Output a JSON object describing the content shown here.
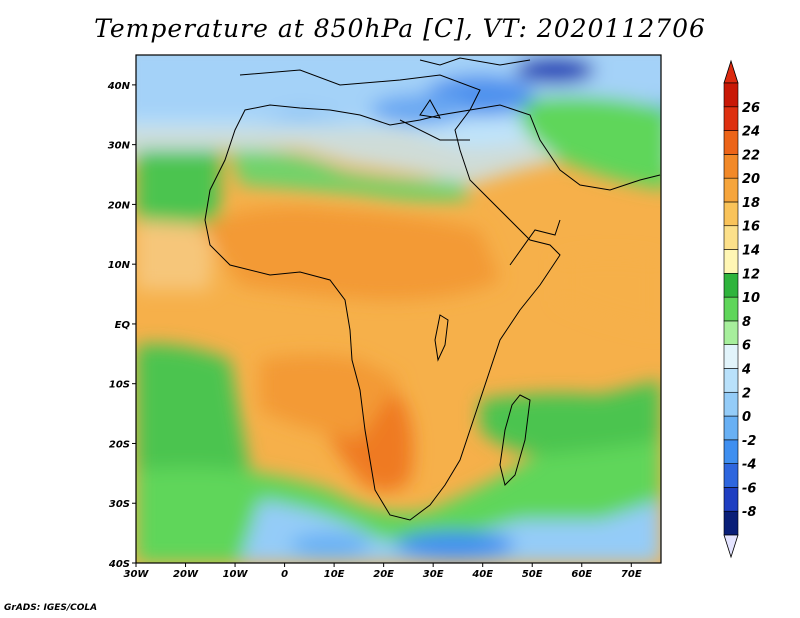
{
  "title": "Temperature at 850hPa [C], VT: 2020112706",
  "credit": "GrADS: IGES/COLA",
  "map": {
    "lon_range": [
      -30,
      76
    ],
    "lat_range": [
      -40,
      45
    ],
    "lon_ticks": [
      {
        "value": -30,
        "label": "30W"
      },
      {
        "value": -20,
        "label": "20W"
      },
      {
        "value": -10,
        "label": "10W"
      },
      {
        "value": 0,
        "label": "0"
      },
      {
        "value": 10,
        "label": "10E"
      },
      {
        "value": 20,
        "label": "20E"
      },
      {
        "value": 30,
        "label": "30E"
      },
      {
        "value": 40,
        "label": "40E"
      },
      {
        "value": 50,
        "label": "50E"
      },
      {
        "value": 60,
        "label": "60E"
      },
      {
        "value": 70,
        "label": "70E"
      }
    ],
    "lat_ticks": [
      {
        "value": -40,
        "label": "40S"
      },
      {
        "value": -30,
        "label": "30S"
      },
      {
        "value": -20,
        "label": "20S"
      },
      {
        "value": -10,
        "label": "10S"
      },
      {
        "value": 0,
        "label": "EQ"
      },
      {
        "value": 10,
        "label": "10N"
      },
      {
        "value": 20,
        "label": "20N"
      },
      {
        "value": 30,
        "label": "30N"
      },
      {
        "value": 40,
        "label": "40N"
      }
    ]
  },
  "colorbar": {
    "levels": [
      "-8",
      "-6",
      "-4",
      "-2",
      "0",
      "2",
      "4",
      "6",
      "8",
      "10",
      "12",
      "14",
      "16",
      "18",
      "20",
      "22",
      "24",
      "26"
    ],
    "colors": [
      "#0a1f78",
      "#1f3fc2",
      "#2e66de",
      "#3f8ff0",
      "#68b0f4",
      "#94ccf8",
      "#b9e1fb",
      "#e2f4fb",
      "#a7ef9c",
      "#5fd65a",
      "#2fb43c",
      "#fff6b4",
      "#fce08a",
      "#f9c35a",
      "#f6a53c",
      "#f28928",
      "#ec6418",
      "#de3010",
      "#c81806"
    ],
    "under_color": "#e4e4ff",
    "over_color": "#dc2a10"
  }
}
